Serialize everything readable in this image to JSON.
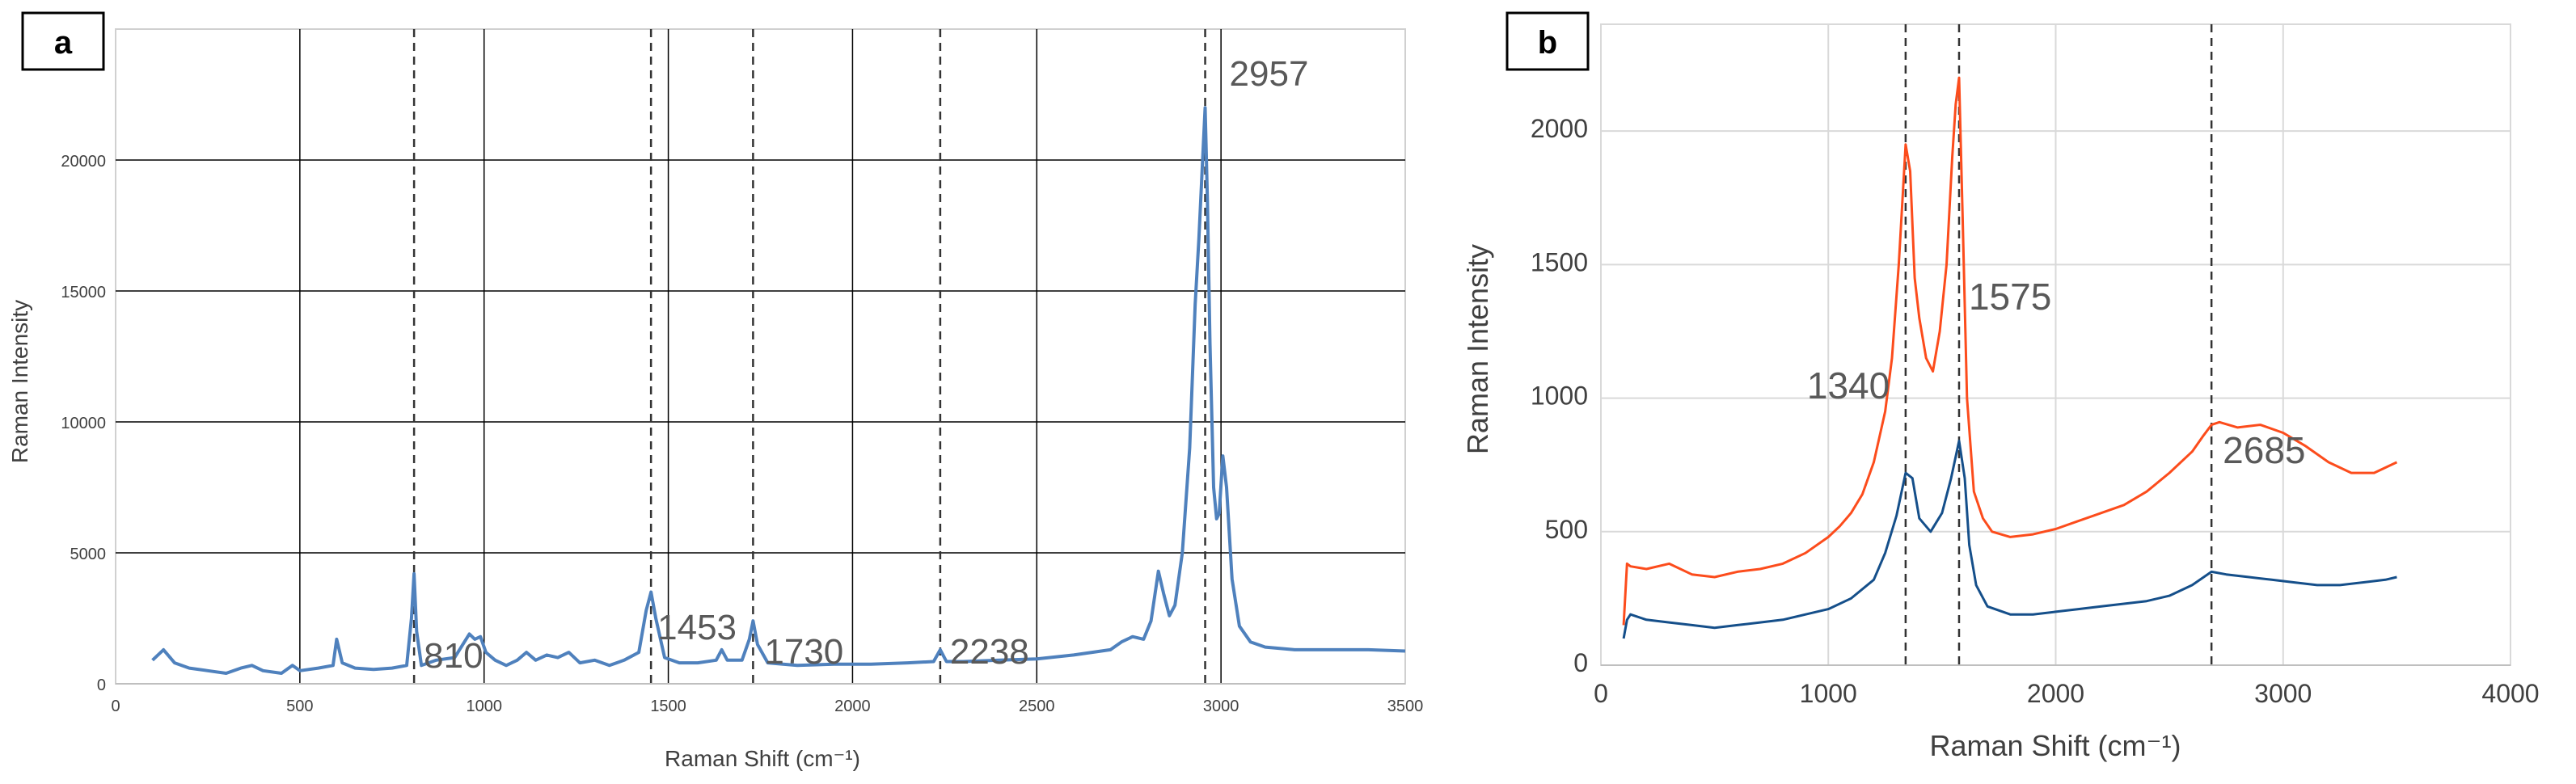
{
  "chart_data": [
    {
      "panel_label": "a",
      "type": "line",
      "xlabel": "Raman Shift (cm⁻¹)",
      "ylabel": "Raman Intensity",
      "xlim": [
        0,
        3500
      ],
      "ylim": [
        0,
        25000
      ],
      "xticks": [
        0,
        500,
        1000,
        1500,
        2000,
        2500,
        3000,
        3500
      ],
      "yticks": [
        0,
        5000,
        10000,
        15000,
        20000
      ],
      "grid": true,
      "color": "#4f81bd",
      "series": [
        {
          "x": [
            100,
            130,
            160,
            200,
            250,
            300,
            340,
            370,
            400,
            450,
            480,
            500,
            550,
            590,
            600,
            615,
            650,
            700,
            750,
            790,
            803,
            810,
            817,
            830,
            870,
            920,
            960,
            975,
            990,
            1005,
            1030,
            1060,
            1090,
            1115,
            1140,
            1170,
            1200,
            1230,
            1260,
            1300,
            1340,
            1380,
            1420,
            1440,
            1453,
            1466,
            1490,
            1530,
            1580,
            1630,
            1645,
            1660,
            1700,
            1720,
            1730,
            1742,
            1770,
            1850,
            1950,
            2050,
            2150,
            2220,
            2238,
            2255,
            2300,
            2400,
            2500,
            2600,
            2700,
            2730,
            2760,
            2790,
            2810,
            2830,
            2845,
            2860,
            2875,
            2895,
            2915,
            2930,
            2940,
            2950,
            2957,
            2963,
            2970,
            2980,
            2988,
            2995,
            3005,
            3015,
            3030,
            3050,
            3080,
            3120,
            3200,
            3300,
            3400,
            3500
          ],
          "values": [
            900,
            1300,
            800,
            600,
            500,
            400,
            600,
            700,
            500,
            400,
            700,
            500,
            600,
            700,
            1700,
            800,
            600,
            550,
            600,
            700,
            2500,
            4200,
            2000,
            700,
            900,
            1000,
            1900,
            1700,
            1800,
            1200,
            900,
            700,
            900,
            1200,
            900,
            1100,
            1000,
            1200,
            800,
            900,
            700,
            900,
            1200,
            2800,
            3500,
            2500,
            1000,
            800,
            800,
            900,
            1300,
            900,
            900,
            1700,
            2400,
            1500,
            800,
            700,
            750,
            750,
            800,
            850,
            1300,
            850,
            850,
            900,
            950,
            1100,
            1300,
            1600,
            1800,
            1700,
            2400,
            4300,
            3400,
            2600,
            3000,
            5000,
            9000,
            14500,
            17000,
            20000,
            22000,
            18500,
            13000,
            7500,
            6300,
            6500,
            8700,
            7500,
            4000,
            2200,
            1600,
            1400,
            1300,
            1300,
            1300,
            1250
          ]
        }
      ],
      "vlines": [
        810,
        1453,
        1730,
        2238,
        2957
      ],
      "annotations": [
        "810",
        "1453",
        "1730",
        "2238",
        "2957"
      ]
    },
    {
      "panel_label": "b",
      "type": "line",
      "xlabel": "Raman Shift (cm⁻¹)",
      "ylabel": "Raman Intensity",
      "xlim": [
        0,
        4000
      ],
      "ylim": [
        0,
        2400
      ],
      "xticks": [
        0,
        1000,
        2000,
        3000,
        4000
      ],
      "yticks": [
        0,
        500,
        1000,
        1500,
        2000
      ],
      "grid": true,
      "series": [
        {
          "color": "#fc4c1c",
          "x": [
            100,
            115,
            130,
            200,
            300,
            400,
            500,
            600,
            700,
            800,
            900,
            1000,
            1050,
            1100,
            1150,
            1200,
            1250,
            1280,
            1310,
            1340,
            1360,
            1380,
            1400,
            1430,
            1460,
            1490,
            1520,
            1545,
            1560,
            1575,
            1590,
            1610,
            1640,
            1680,
            1720,
            1800,
            1900,
            2000,
            2100,
            2200,
            2300,
            2400,
            2500,
            2600,
            2650,
            2685,
            2720,
            2800,
            2900,
            3000,
            3100,
            3200,
            3300,
            3400,
            3500
          ],
          "values": [
            150,
            380,
            370,
            360,
            380,
            340,
            330,
            350,
            360,
            380,
            420,
            480,
            520,
            570,
            640,
            760,
            950,
            1150,
            1500,
            1950,
            1850,
            1450,
            1300,
            1150,
            1100,
            1250,
            1500,
            1900,
            2100,
            2200,
            1700,
            1000,
            650,
            550,
            500,
            480,
            490,
            510,
            540,
            570,
            600,
            650,
            720,
            800,
            860,
            900,
            910,
            890,
            900,
            870,
            820,
            760,
            720,
            720,
            760
          ]
        },
        {
          "color": "#154f8a",
          "x": [
            100,
            115,
            130,
            200,
            300,
            400,
            500,
            600,
            700,
            800,
            900,
            1000,
            1100,
            1200,
            1250,
            1300,
            1340,
            1370,
            1400,
            1450,
            1500,
            1540,
            1575,
            1600,
            1620,
            1650,
            1700,
            1800,
            1900,
            2000,
            2100,
            2200,
            2300,
            2400,
            2500,
            2600,
            2685,
            2750,
            2850,
            2950,
            3050,
            3150,
            3250,
            3350,
            3450,
            3500
          ],
          "values": [
            100,
            170,
            190,
            170,
            160,
            150,
            140,
            150,
            160,
            170,
            190,
            210,
            250,
            320,
            420,
            560,
            720,
            700,
            550,
            500,
            570,
            700,
            840,
            700,
            450,
            300,
            220,
            190,
            190,
            200,
            210,
            220,
            230,
            240,
            260,
            300,
            350,
            340,
            330,
            320,
            310,
            300,
            300,
            310,
            320,
            330
          ]
        }
      ],
      "vlines": [
        1340,
        1575,
        2685
      ],
      "annotations": [
        "1340",
        "1575",
        "2685"
      ]
    }
  ]
}
